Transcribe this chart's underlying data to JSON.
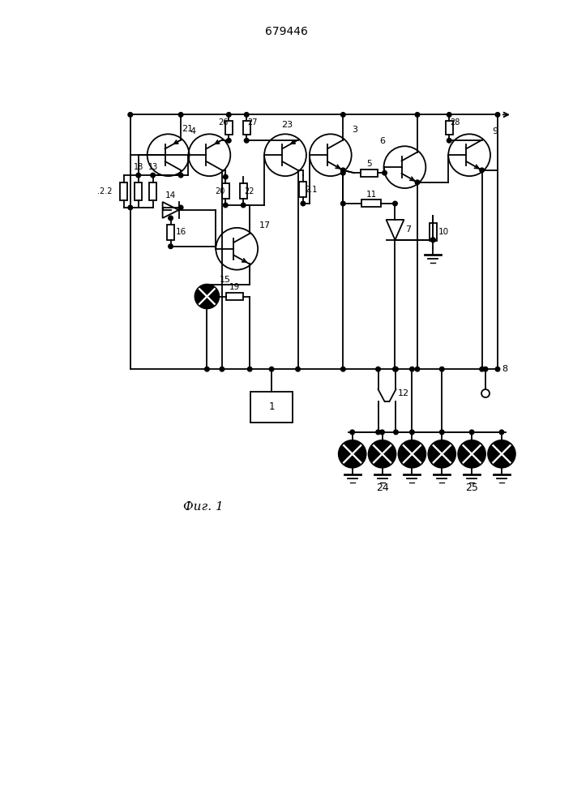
{
  "title": "679446",
  "fig_label": "Фиг. 1",
  "bg_color": "#ffffff",
  "line_color": "#000000",
  "lw": 1.3
}
